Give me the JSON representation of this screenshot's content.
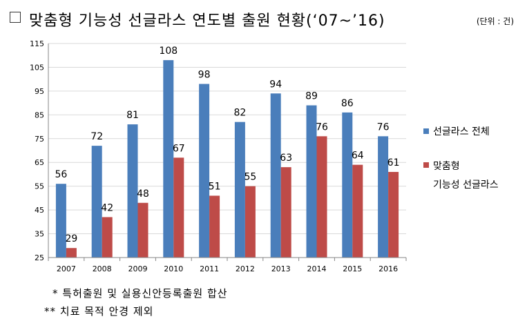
{
  "header": {
    "title": "맞춤형 기능성 선글라스 연도별 출원 현황(‘07~’16)",
    "unit": "(단위 : 건)"
  },
  "notes": {
    "note1": "* 특허출원 및 실용신안등록출원 합산",
    "note2": "** 치료 목적 안경 제외"
  },
  "colors": {
    "series1": "#4a7ebb",
    "series2": "#be4b48",
    "grid": "#d9d9d9",
    "axis": "#868686"
  },
  "chart_data": {
    "type": "bar",
    "categories": [
      "2007",
      "2008",
      "2009",
      "2010",
      "2011",
      "2012",
      "2013",
      "2014",
      "2015",
      "2016"
    ],
    "series": [
      {
        "name": "선글라스 전체",
        "values": [
          56,
          72,
          81,
          108,
          98,
          82,
          94,
          89,
          86,
          76
        ],
        "color": "#4a7ebb"
      },
      {
        "name": "맞춤형 기능성 선글라스",
        "legend_lines": [
          "맞춤형",
          "기능성 선글라스"
        ],
        "values": [
          29,
          42,
          48,
          67,
          51,
          55,
          63,
          76,
          64,
          61
        ],
        "color": "#be4b48"
      }
    ],
    "ylim": [
      25,
      115
    ],
    "yticks": [
      25,
      35,
      45,
      55,
      65,
      75,
      85,
      95,
      105,
      115
    ],
    "grid": true,
    "data_labels": true,
    "legend_position": "right"
  }
}
